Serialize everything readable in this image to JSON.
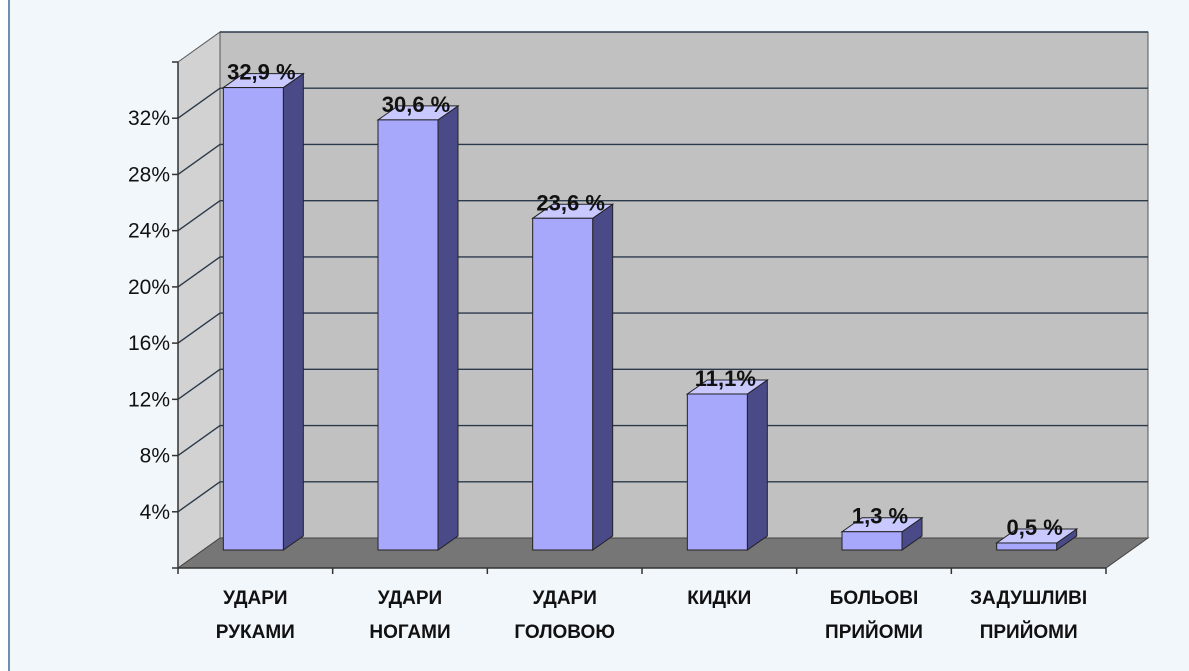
{
  "chart_data": {
    "type": "bar",
    "categories": [
      [
        "УДАРИ",
        "РУКАМИ"
      ],
      [
        "УДАРИ",
        "НОГАМИ"
      ],
      [
        "УДАРИ",
        "ГОЛОВОЮ"
      ],
      [
        "КИДКИ"
      ],
      [
        "БОЛЬОВІ",
        "ПРИЙОМИ"
      ],
      [
        "ЗАДУШЛИВІ",
        "ПРИЙОМИ"
      ]
    ],
    "values": [
      32.9,
      30.6,
      23.6,
      11.1,
      1.3,
      0.5
    ],
    "value_labels": [
      "32,9 %",
      "30,6 %",
      "23,6 %",
      "11,1%",
      "1,3 %",
      "0,5 %"
    ],
    "ylim": [
      0,
      36
    ],
    "yticks": [
      4,
      8,
      12,
      16,
      20,
      24,
      28,
      32
    ],
    "ytick_labels": [
      "4%",
      "8%",
      "12%",
      "16%",
      "20%",
      "24%",
      "28%",
      "32%"
    ],
    "grid": true,
    "style": "3d",
    "colors": {
      "bar_front": "#a7a7fb",
      "bar_side": "#4a4a88",
      "bar_top": "#c9c9ff",
      "back_wall": "#c1c1c1",
      "side_wall": "#d2d2d2",
      "floor": "#767676",
      "grid": "#2a3a4a"
    }
  }
}
